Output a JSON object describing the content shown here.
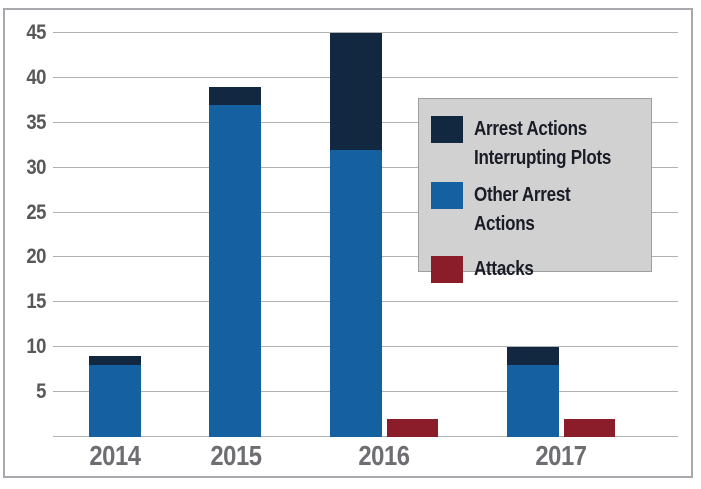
{
  "chart_data": {
    "type": "bar",
    "stacked": true,
    "title": "",
    "xlabel": "",
    "ylabel": "",
    "categories": [
      "2014",
      "2015",
      "2016",
      "2017"
    ],
    "series": [
      {
        "name": "Arrest Actions Interrupting Plots",
        "color": "#122840",
        "stack": "arrest-actions",
        "values": [
          1,
          2,
          13,
          2
        ]
      },
      {
        "name": "Other Arrest Actions",
        "color": "#1560A0",
        "stack": "arrest-actions",
        "values": [
          8,
          37,
          32,
          8
        ]
      },
      {
        "name": "Attacks",
        "color": "#8B1D2B",
        "stack": "attacks",
        "values": [
          0,
          0,
          2,
          2
        ]
      }
    ],
    "ylim": [
      0,
      45
    ],
    "yticks": [
      5,
      10,
      15,
      20,
      25,
      30,
      35,
      40,
      45
    ],
    "grid": true,
    "legend_position": "upper-right"
  },
  "legend": {
    "background": "#D1D1D1",
    "border": "#9C9EA0",
    "items": [
      {
        "label": "Arrest Actions\nInterrupting Plots",
        "color": "#122840",
        "icon": "navy-square"
      },
      {
        "label": "Other Arrest Actions",
        "color": "#1560A0",
        "icon": "blue-square"
      },
      {
        "label": "Attacks",
        "color": "#8B1D2B",
        "icon": "red-square"
      }
    ]
  },
  "axes": {
    "x_tick_labels": [
      "2014",
      "2015",
      "2016",
      "2017"
    ],
    "y_tick_labels": [
      "5",
      "10",
      "15",
      "20",
      "25",
      "30",
      "35",
      "40",
      "45"
    ]
  },
  "colors": {
    "background": "#FFFFFF",
    "frame_border": "#A7A9AC",
    "gridline": "#AEB0B2",
    "y_tick_text": "#58585A",
    "x_tick_text": "#6D6E71",
    "legend_text": "#191C26"
  }
}
